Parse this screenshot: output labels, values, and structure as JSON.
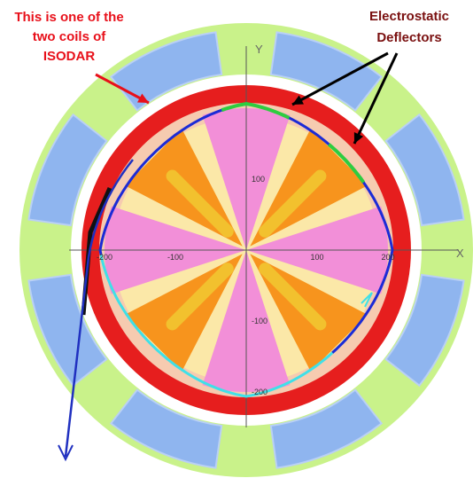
{
  "annotations": {
    "coil_label": [
      "This is one of the",
      "two coils of",
      "ISODAR"
    ],
    "deflector_label": [
      "Electrostatic",
      "Deflectors"
    ]
  },
  "axes": {
    "x_label": "X",
    "y_label": "Y",
    "x_ticks": [
      -200,
      -100,
      100,
      200
    ],
    "y_ticks": [
      100,
      -100,
      -200
    ]
  }
}
